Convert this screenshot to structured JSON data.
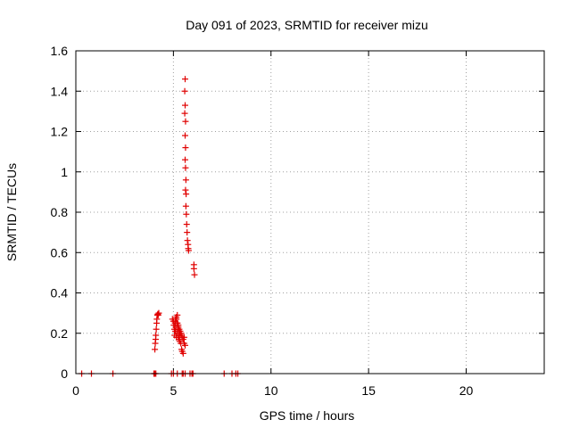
{
  "chart_data": {
    "type": "scatter",
    "title": "Day 091 of 2023, SRMTID for receiver mizu",
    "xlabel": "GPS time / hours",
    "ylabel": "SRMTID / TECUs",
    "xlim": [
      0,
      24
    ],
    "ylim": [
      0,
      1.6
    ],
    "x_ticks": [
      0,
      5,
      10,
      15,
      20
    ],
    "y_ticks": [
      0,
      0.2,
      0.4,
      0.6,
      0.8,
      1,
      1.2,
      1.4,
      1.6
    ],
    "x_tick_labels": [
      "0",
      "5",
      "10",
      "15",
      "20"
    ],
    "y_tick_labels": [
      "0",
      "0.2",
      "0.4",
      "0.6",
      "0.8",
      "1",
      "1.2",
      "1.4",
      "1.6"
    ],
    "grid": true,
    "marker": "+",
    "color": "#e00000",
    "series": [
      {
        "x": [
          0.3,
          0.8,
          1.9,
          4.0,
          4.05,
          4.1,
          4.9,
          5.0,
          5.2,
          5.45,
          5.5,
          5.6,
          5.85,
          5.95,
          6.0,
          7.6,
          8.0,
          8.2,
          8.3,
          4.05,
          4.07,
          4.09,
          4.1,
          4.12,
          4.14,
          4.15,
          4.18,
          4.2,
          4.22,
          4.25,
          4.95,
          5.0,
          5.02,
          5.05,
          5.06,
          5.08,
          5.1,
          5.1,
          5.12,
          5.15,
          5.15,
          5.18,
          5.2,
          5.2,
          5.22,
          5.25,
          5.25,
          5.28,
          5.3,
          5.3,
          5.32,
          5.35,
          5.38,
          5.4,
          5.42,
          5.45,
          5.5,
          5.55,
          5.1,
          5.15,
          5.2,
          5.25,
          5.3,
          5.35,
          5.4,
          5.45,
          5.5,
          5.55,
          5.6,
          5.6,
          5.58,
          5.6,
          5.58,
          5.62,
          5.6,
          5.62,
          5.6,
          5.62,
          5.64,
          5.62,
          5.65,
          5.64,
          5.66,
          5.68,
          5.7,
          5.72,
          5.75,
          5.76,
          5.78,
          6.05,
          6.05,
          6.08
        ],
        "y": [
          0,
          0,
          0,
          0,
          0,
          0,
          0,
          0,
          0,
          0,
          0,
          0,
          0,
          0,
          0,
          0,
          0,
          0,
          0,
          0.12,
          0.15,
          0.17,
          0.19,
          0.22,
          0.25,
          0.27,
          0.29,
          0.295,
          0.29,
          0.3,
          0.27,
          0.26,
          0.24,
          0.22,
          0.19,
          0.25,
          0.27,
          0.21,
          0.23,
          0.18,
          0.28,
          0.2,
          0.29,
          0.25,
          0.22,
          0.24,
          0.18,
          0.2,
          0.19,
          0.17,
          0.16,
          0.2,
          0.15,
          0.19,
          0.12,
          0.11,
          0.1,
          0.18,
          0.26,
          0.27,
          0.25,
          0.23,
          0.22,
          0.21,
          0.2,
          0.18,
          0.17,
          0.15,
          0.14,
          1.46,
          1.4,
          1.33,
          1.29,
          1.25,
          1.18,
          1.12,
          1.06,
          1.02,
          0.96,
          0.91,
          0.89,
          0.83,
          0.79,
          0.74,
          0.7,
          0.66,
          0.64,
          0.62,
          0.61,
          0.54,
          0.52,
          0.49
        ]
      }
    ]
  }
}
